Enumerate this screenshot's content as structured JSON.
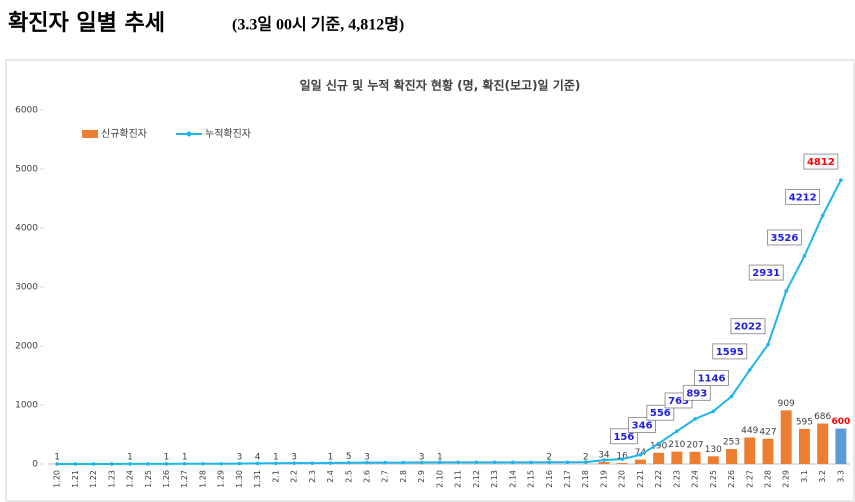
{
  "header": {
    "title": "확진자 일별 추세",
    "subtitle": "(3.3일 00시 기준, 4,812명)"
  },
  "chart_data": {
    "type": "bar-line",
    "title": "일일 신규 및 누적 확진자 현황 (명, 확진(보고)일 기준)",
    "categories": [
      "1.20",
      "1.21",
      "1.22",
      "1.23",
      "1.24",
      "1.25",
      "1.26",
      "1.27",
      "1.28",
      "1.29",
      "1.30",
      "1.31",
      "2.1",
      "2.2",
      "2.3",
      "2.4",
      "2.5",
      "2.6",
      "2.7",
      "2.8",
      "2.9",
      "2.10",
      "2.11",
      "2.12",
      "2.13",
      "2.14",
      "2.15",
      "2.16",
      "2.17",
      "2.18",
      "2.19",
      "2.20",
      "2.21",
      "2.22",
      "2.23",
      "2.24",
      "2.25",
      "2.26",
      "2.27",
      "2.28",
      "2.29",
      "3.1",
      "3.2",
      "3.3"
    ],
    "series": [
      {
        "name": "신규확진자",
        "kind": "bar",
        "color": "#ed7d31",
        "last_color": "#5b9bd5",
        "last_label_color": "#ff0000",
        "values": [
          1,
          0,
          0,
          0,
          1,
          0,
          1,
          1,
          0,
          0,
          3,
          4,
          1,
          3,
          0,
          1,
          5,
          3,
          0,
          0,
          3,
          1,
          0,
          0,
          0,
          0,
          0,
          2,
          0,
          2,
          34,
          16,
          74,
          190,
          210,
          207,
          130,
          253,
          449,
          427,
          909,
          595,
          686,
          600
        ]
      },
      {
        "name": "누적확진자",
        "kind": "line",
        "color": "#1fb4ec",
        "last_color": "#1fb4ec",
        "last_label_color": "#ff0000",
        "values": [
          1,
          1,
          1,
          1,
          2,
          2,
          3,
          4,
          4,
          4,
          7,
          11,
          12,
          15,
          15,
          16,
          21,
          24,
          24,
          24,
          27,
          28,
          28,
          28,
          28,
          28,
          28,
          30,
          30,
          32,
          66,
          82,
          156,
          346,
          556,
          763,
          893,
          1146,
          1595,
          2022,
          2931,
          3526,
          4212,
          4812
        ]
      }
    ],
    "ylim": [
      0,
      6000
    ],
    "yticks": [
      0,
      1000,
      2000,
      3000,
      4000,
      5000,
      6000
    ],
    "legend": "top-left",
    "grid": false
  }
}
